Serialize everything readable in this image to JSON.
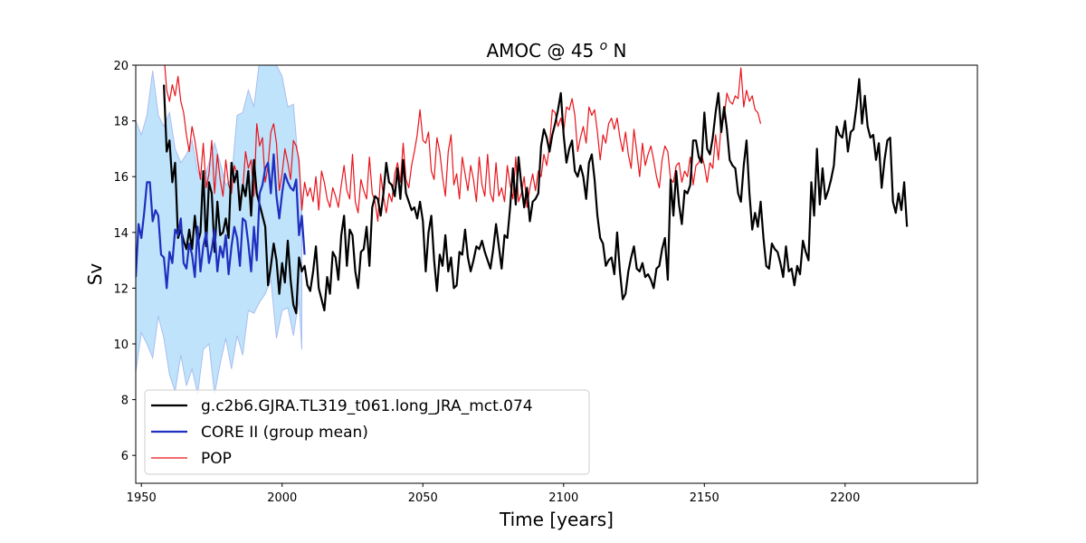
{
  "chart_data": {
    "type": "line",
    "title_prefix": "AMOC @ 45 ",
    "title_sup": "o",
    "title_suffix": " N",
    "xlabel": "Time [years]",
    "ylabel": "Sv",
    "xlim": [
      1948,
      2247
    ],
    "ylim": [
      5,
      20
    ],
    "xticks": [
      1950,
      2000,
      2050,
      2100,
      2150,
      2200
    ],
    "yticks": [
      6,
      8,
      10,
      12,
      14,
      16,
      18,
      20
    ],
    "grid": false,
    "legend_position": "lower-left",
    "colors": {
      "model": "#000000",
      "core": "#1f2fbf",
      "pop": "#e8141b",
      "band_fill": "#bfe3fb",
      "band_edge": "#a9bdf0"
    },
    "core_spread": {
      "x": [
        1948,
        1950,
        1952,
        1954,
        1956,
        1958,
        1960,
        1962,
        1964,
        1966,
        1968,
        1970,
        1972,
        1974,
        1976,
        1978,
        1980,
        1982,
        1984,
        1986,
        1988,
        1990,
        1992,
        1994,
        1996,
        1998,
        2000,
        2002,
        2004,
        2006,
        2007
      ],
      "upper": [
        18.0,
        17.5,
        18.2,
        19.8,
        18.2,
        17.8,
        18.3,
        17.0,
        16.5,
        16.8,
        17.3,
        16.2,
        15.8,
        16.5,
        17.2,
        16.5,
        15.7,
        15.9,
        18.2,
        18.3,
        19.1,
        18.5,
        20.2,
        20.5,
        20.2,
        20.0,
        19.6,
        18.5,
        18.6,
        16.2,
        15.3
      ],
      "lower": [
        9.0,
        10.4,
        10.0,
        9.5,
        11.0,
        10.2,
        8.9,
        8.3,
        9.6,
        8.5,
        9.1,
        8.2,
        9.8,
        10.0,
        8.2,
        9.3,
        10.2,
        9.1,
        10.3,
        9.6,
        11.2,
        11.1,
        11.5,
        11.8,
        12.3,
        10.2,
        11.2,
        11.3,
        10.3,
        11.6,
        9.8
      ]
    },
    "series": [
      {
        "name": "g.c2b6.GJRA.TL319_t061.long_JRA_mct.074",
        "x0": 1958,
        "values": [
          19.3,
          16.9,
          17.3,
          15.8,
          16.5,
          13.8,
          14.1,
          13.7,
          13.4,
          14.1,
          13.4,
          14.6,
          13.6,
          14.0,
          16.2,
          13.5,
          15.8,
          15.4,
          13.3,
          15.1,
          13.9,
          14.0,
          14.5,
          13.8,
          16.5,
          15.8,
          16.2,
          14.8,
          15.7,
          15.3,
          16.2,
          14.6,
          16.6,
          15.4,
          15.0,
          14.6,
          14.2,
          12.1,
          12.8,
          13.6,
          13.0,
          11.8,
          12.9,
          12.2,
          13.7,
          12.3,
          11.4,
          11.1,
          13.1,
          12.6,
          12.8,
          12.1,
          11.9,
          12.6,
          13.5,
          12.0,
          11.6,
          11.2,
          12.4,
          11.8,
          13.3,
          13.1,
          12.3,
          13.9,
          14.6,
          12.8,
          14.1,
          13.9,
          12.6,
          12.0,
          13.3,
          13.4,
          14.2,
          12.8,
          14.9,
          15.3,
          15.2,
          14.6,
          15.4,
          16.5,
          15.8,
          15.7,
          15.3,
          16.3,
          15.2,
          16.6,
          15.4,
          15.1,
          14.8,
          14.9,
          14.5,
          15.1,
          14.4,
          12.6,
          14.0,
          14.6,
          13.0,
          11.9,
          13.2,
          12.8,
          13.9,
          12.6,
          13.1,
          12.0,
          12.1,
          13.3,
          13.2,
          14.1,
          13.1,
          12.6,
          13.0,
          13.5,
          13.4,
          13.7,
          13.3,
          13.0,
          12.7,
          13.4,
          14.3,
          13.5,
          12.7,
          13.9,
          13.8,
          14.9,
          16.3,
          15.0,
          16.7,
          15.7,
          14.9,
          15.6,
          14.4,
          15.1,
          15.2,
          15.4,
          17.1,
          17.7,
          17.4,
          16.9,
          17.5,
          17.9,
          18.4,
          19.0,
          17.5,
          16.5,
          17.0,
          17.3,
          16.2,
          16.0,
          16.4,
          16.0,
          15.2,
          16.5,
          16.8,
          15.9,
          14.6,
          13.8,
          13.6,
          12.8,
          13.0,
          13.1,
          12.5,
          14.0,
          12.6,
          11.6,
          11.8,
          12.6,
          13.1,
          13.5,
          12.7,
          12.6,
          12.9,
          12.4,
          12.5,
          12.3,
          12.0,
          12.7,
          12.8,
          13.4,
          13.8,
          12.3,
          15.9,
          14.6,
          16.2,
          15.0,
          14.3,
          15.5,
          15.4,
          15.7,
          17.3,
          17.3,
          16.7,
          16.5,
          18.3,
          17.0,
          16.8,
          17.4,
          18.3,
          19.0,
          17.6,
          18.5,
          17.7,
          16.6,
          16.4,
          16.3,
          15.4,
          15.1,
          16.4,
          17.3,
          15.4,
          14.1,
          14.7,
          14.2,
          15.1,
          13.8,
          12.8,
          12.7,
          13.6,
          13.4,
          13.3,
          12.9,
          12.4,
          13.5,
          12.6,
          12.7,
          12.1,
          12.8,
          12.5,
          13.7,
          13.3,
          13.0,
          15.8,
          14.6,
          17.0,
          15.0,
          16.3,
          15.2,
          15.5,
          15.9,
          16.4,
          17.8,
          17.5,
          17.4,
          18.0,
          16.9,
          17.6,
          17.7,
          18.5,
          19.5,
          17.9,
          18.9,
          17.8,
          17.4,
          17.5,
          16.6,
          17.2,
          15.6,
          16.6,
          17.3,
          17.4,
          15.1,
          14.7,
          15.4,
          14.8,
          15.8,
          14.2
        ]
      },
      {
        "name": "CORE II (group mean)",
        "x0": 1948,
        "values": [
          12.4,
          14.3,
          13.8,
          14.7,
          15.8,
          15.8,
          14.4,
          14.8,
          14.6,
          13.2,
          13.1,
          12.0,
          13.3,
          12.9,
          14.1,
          13.9,
          14.5,
          12.9,
          12.7,
          13.6,
          13.2,
          12.4,
          14.2,
          12.6,
          13.5,
          14.0,
          12.9,
          13.4,
          14.1,
          12.6,
          13.5,
          13.1,
          13.9,
          12.5,
          13.5,
          14.2,
          13.8,
          12.8,
          14.5,
          14.4,
          13.6,
          12.6,
          14.2,
          13.0,
          15.4,
          15.7,
          16.3,
          16.5,
          15.4,
          16.8,
          15.3,
          14.5,
          15.4,
          16.1,
          15.8,
          15.6,
          15.5,
          15.9,
          13.9,
          14.6,
          13.2
        ]
      },
      {
        "name": "POP",
        "x0": 1958,
        "values": [
          20.4,
          19.1,
          18.7,
          19.3,
          18.9,
          19.6,
          18.7,
          18.3,
          17.5,
          16.9,
          17.8,
          17.3,
          16.6,
          15.9,
          17.2,
          15.6,
          16.1,
          17.3,
          15.4,
          16.8,
          15.9,
          15.3,
          16.6,
          15.7,
          15.4,
          16.4,
          16.1,
          15.2,
          15.5,
          16.9,
          16.3,
          16.6,
          15.3,
          17.9,
          17.1,
          17.4,
          15.8,
          16.4,
          17.6,
          17.9,
          17.2,
          15.5,
          16.1,
          17.0,
          16.5,
          15.9,
          17.3,
          17.1,
          16.6,
          14.8,
          15.8,
          15.3,
          15.6,
          15.1,
          16.0,
          14.8,
          16.2,
          15.8,
          15.2,
          14.9,
          15.6,
          15.3,
          14.9,
          15.7,
          16.4,
          15.5,
          15.2,
          16.8,
          15.1,
          14.7,
          15.9,
          15.5,
          15.2,
          16.7,
          15.4,
          15.1,
          14.4,
          16.1,
          15.3,
          14.7,
          15.4,
          15.1,
          16.1,
          16.5,
          15.8,
          17.2,
          15.9,
          15.6,
          16.4,
          16.9,
          17.5,
          18.4,
          17.3,
          17.2,
          17.6,
          16.2,
          15.9,
          17.4,
          16.9,
          16.0,
          15.3,
          16.9,
          17.5,
          15.7,
          16.1,
          15.2,
          16.7,
          16.1,
          15.5,
          16.4,
          15.9,
          15.1,
          16.7,
          15.7,
          15.3,
          16.8,
          15.4,
          15.1,
          16.5,
          15.3,
          15.6,
          15.1,
          16.4,
          15.7,
          15.2,
          16.7,
          15.1,
          15.4,
          16.0,
          14.9,
          15.6,
          16.1,
          15.5,
          16.2,
          16.0,
          16.8,
          16.4,
          17.1,
          18.4,
          18.3,
          17.8,
          18.1,
          17.6,
          18.5,
          18.4,
          18.8,
          18.2,
          16.9,
          17.4,
          17.8,
          17.2,
          18.5,
          18.2,
          18.4,
          17.6,
          16.6,
          17.5,
          17.2,
          17.9,
          18.1,
          17.7,
          18.1,
          17.4,
          16.9,
          17.6,
          16.8,
          16.3,
          17.7,
          16.9,
          16.0,
          17.2,
          16.4,
          16.8,
          17.1,
          16.6,
          16.0,
          15.6,
          16.6,
          17.1,
          16.9,
          15.9,
          15.8,
          16.4,
          16.5,
          15.8,
          16.2,
          16.0,
          16.7,
          15.7,
          16.4,
          16.5,
          16.8,
          16.4,
          15.8,
          16.5,
          16.3,
          17.5,
          16.6,
          17.9,
          18.1,
          19.0,
          18.7,
          18.6,
          18.9,
          18.8,
          19.9,
          18.5,
          19.1,
          18.7,
          18.9,
          18.4,
          18.3,
          17.9
        ]
      }
    ]
  }
}
